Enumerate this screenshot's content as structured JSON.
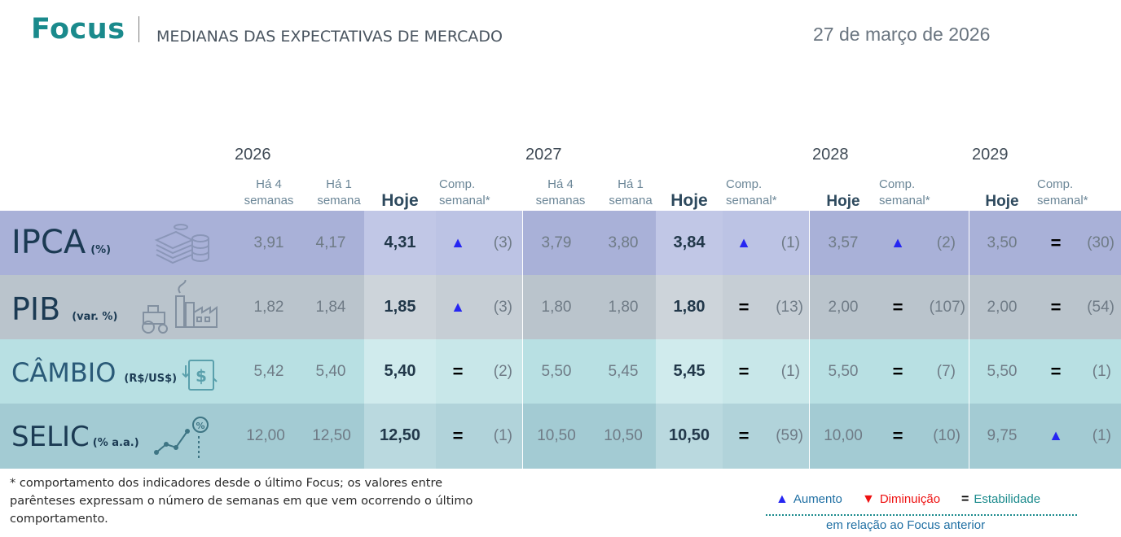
{
  "header": {
    "brand": "Focus",
    "subtitle": "MEDIANAS DAS EXPECTATIVAS DE MERCADO",
    "date": "27 de março de 2026"
  },
  "years": [
    "2026",
    "2027",
    "2028",
    "2029"
  ],
  "column_headers": {
    "ha4_line1": "Há 4",
    "ha4_line2": "semanas",
    "ha1_line1": "Há 1",
    "ha1_line2": "semana",
    "hoje": "Hoje",
    "comp_line1": "Comp.",
    "comp_line2": "semanal*"
  },
  "rows": [
    {
      "name": "IPCA",
      "unit": "(%)",
      "icon": "coins-icon",
      "y2026": {
        "ha4": "3,91",
        "ha1": "4,17",
        "hoje": "4,31",
        "trend": "▲",
        "count": "(3)"
      },
      "y2027": {
        "ha4": "3,79",
        "ha1": "3,80",
        "hoje": "3,84",
        "trend": "▲",
        "count": "(1)"
      },
      "y2028": {
        "hoje": "3,57",
        "trend": "▲",
        "count": "(2)"
      },
      "y2029": {
        "hoje": "3,50",
        "trend": "=",
        "count": "(30)"
      }
    },
    {
      "name": "PIB",
      "unit": "(var. %)",
      "icon": "factory-tractor-icon",
      "y2026": {
        "ha4": "1,82",
        "ha1": "1,84",
        "hoje": "1,85",
        "trend": "▲",
        "count": "(3)"
      },
      "y2027": {
        "ha4": "1,80",
        "ha1": "1,80",
        "hoje": "1,80",
        "trend": "=",
        "count": "(13)"
      },
      "y2028": {
        "hoje": "2,00",
        "trend": "=",
        "count": "(107)"
      },
      "y2029": {
        "hoje": "2,00",
        "trend": "=",
        "count": "(54)"
      }
    },
    {
      "name": "CÂMBIO",
      "unit": "(R$/US$)",
      "icon": "currency-exchange-icon",
      "y2026": {
        "ha4": "5,42",
        "ha1": "5,40",
        "hoje": "5,40",
        "trend": "=",
        "count": "(2)"
      },
      "y2027": {
        "ha4": "5,50",
        "ha1": "5,45",
        "hoje": "5,45",
        "trend": "=",
        "count": "(1)"
      },
      "y2028": {
        "hoje": "5,50",
        "trend": "=",
        "count": "(7)"
      },
      "y2029": {
        "hoje": "5,50",
        "trend": "=",
        "count": "(1)"
      }
    },
    {
      "name": "SELIC",
      "unit": "(% a.a.)",
      "icon": "rate-chart-icon",
      "y2026": {
        "ha4": "12,00",
        "ha1": "12,50",
        "hoje": "12,50",
        "trend": "=",
        "count": "(1)"
      },
      "y2027": {
        "ha4": "10,50",
        "ha1": "10,50",
        "hoje": "10,50",
        "trend": "=",
        "count": "(59)"
      },
      "y2028": {
        "hoje": "10,00",
        "trend": "=",
        "count": "(10)"
      },
      "y2029": {
        "hoje": "9,75",
        "trend": "▲",
        "count": "(1)"
      }
    }
  ],
  "colors": {
    "brand": "#1a8a8c",
    "up_arrow": "#2626f2",
    "down_arrow": "#ee1111",
    "stable": "#000000",
    "ipca_band": "#a9b1d8",
    "pib_band": "#bac4cc",
    "cambio_band": "#b8e0e3",
    "selic_band": "#a3cbd3"
  },
  "footnote": "* comportamento dos indicadores desde o último Focus; os valores entre parênteses expressam o número de semanas em que vem ocorrendo o último comportamento.",
  "legend": {
    "up_symbol": "▲",
    "up_label": "Aumento",
    "down_symbol": "▼",
    "down_label": "Diminuição",
    "stable_symbol": "=",
    "stable_label": "Estabilidade",
    "note": "em relação ao Focus anterior"
  }
}
